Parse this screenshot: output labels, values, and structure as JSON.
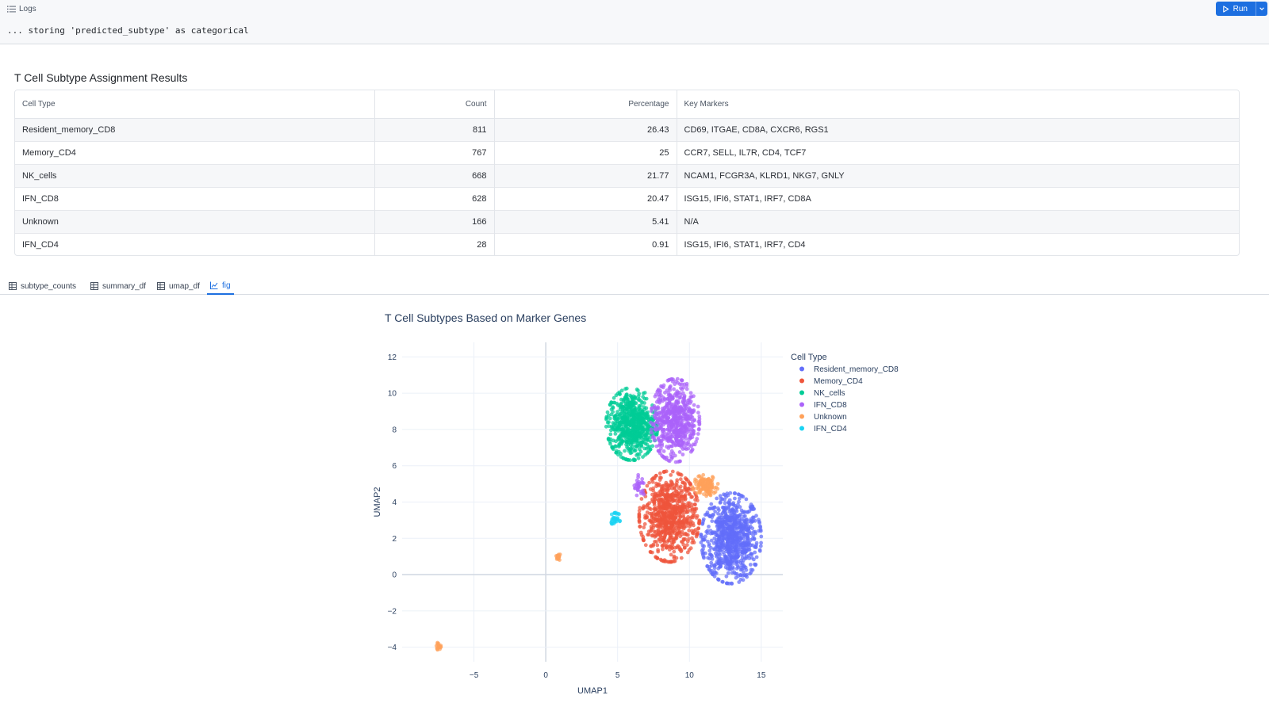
{
  "logs": {
    "label": "Logs",
    "line": "... storing 'predicted_subtype' as categorical"
  },
  "toolbar": {
    "run_label": "Run"
  },
  "results": {
    "title": "T Cell Subtype Assignment Results",
    "columns": [
      "Cell Type",
      "Count",
      "Percentage",
      "Key Markers"
    ],
    "rows": [
      [
        "Resident_memory_CD8",
        "811",
        "26.43",
        "CD69, ITGAE, CD8A, CXCR6, RGS1"
      ],
      [
        "Memory_CD4",
        "767",
        "25",
        "CCR7, SELL, IL7R, CD4, TCF7"
      ],
      [
        "NK_cells",
        "668",
        "21.77",
        "NCAM1, FCGR3A, KLRD1, NKG7, GNLY"
      ],
      [
        "IFN_CD8",
        "628",
        "20.47",
        "ISG15, IFI6, STAT1, IRF7, CD8A"
      ],
      [
        "Unknown",
        "166",
        "5.41",
        "N/A"
      ],
      [
        "IFN_CD4",
        "28",
        "0.91",
        "ISG15, IFI6, STAT1, IRF7, CD4"
      ]
    ]
  },
  "tabs": [
    {
      "label": "subtype_counts",
      "icon": "table-icon",
      "active": false
    },
    {
      "label": "summary_df",
      "icon": "table-icon",
      "active": false
    },
    {
      "label": "umap_df",
      "icon": "table-icon",
      "active": false
    },
    {
      "label": "fig",
      "icon": "chart-icon",
      "active": true
    }
  ],
  "colors": {
    "accent": "#1d6fe0",
    "Resident_memory_CD8": "#636efa",
    "Memory_CD4": "#ef553b",
    "NK_cells": "#00cc96",
    "IFN_CD8": "#ab63fa",
    "Unknown": "#ffa15a",
    "IFN_CD4": "#19d3f3"
  },
  "chart_data": {
    "type": "scatter",
    "title": "T Cell Subtypes Based on Marker Genes",
    "xlabel": "UMAP1",
    "ylabel": "UMAP2",
    "xlim": [
      -10,
      16.5
    ],
    "ylim": [
      -4.8,
      12.8
    ],
    "xticks": [
      -5,
      0,
      5,
      10,
      15
    ],
    "yticks": [
      -4,
      -2,
      0,
      2,
      4,
      6,
      8,
      10,
      12
    ],
    "grid": true,
    "legend": {
      "title": "Cell Type",
      "placement": "right"
    },
    "series": [
      {
        "name": "Resident_memory_CD8",
        "color": "#636efa",
        "clusters": [
          {
            "cx": 12.9,
            "cy": 2.0,
            "rx": 2.1,
            "ry": 2.5,
            "n": 811
          }
        ]
      },
      {
        "name": "Memory_CD4",
        "color": "#ef553b",
        "clusters": [
          {
            "cx": 8.6,
            "cy": 3.2,
            "rx": 2.1,
            "ry": 2.5,
            "n": 767
          }
        ]
      },
      {
        "name": "NK_cells",
        "color": "#00cc96",
        "clusters": [
          {
            "cx": 6.0,
            "cy": 8.3,
            "rx": 1.8,
            "ry": 2.0,
            "n": 668
          }
        ]
      },
      {
        "name": "IFN_CD8",
        "color": "#ab63fa",
        "clusters": [
          {
            "cx": 9.0,
            "cy": 8.5,
            "rx": 1.7,
            "ry": 2.3,
            "n": 600
          },
          {
            "cx": 6.5,
            "cy": 4.8,
            "rx": 0.5,
            "ry": 0.7,
            "n": 28
          }
        ]
      },
      {
        "name": "Unknown",
        "color": "#ffa15a",
        "clusters": [
          {
            "cx": 11.1,
            "cy": 4.9,
            "rx": 0.9,
            "ry": 0.6,
            "n": 130
          },
          {
            "cx": 0.9,
            "cy": 1.0,
            "rx": 0.2,
            "ry": 0.2,
            "n": 18
          },
          {
            "cx": -7.5,
            "cy": -3.95,
            "rx": 0.2,
            "ry": 0.2,
            "n": 18
          }
        ]
      },
      {
        "name": "IFN_CD4",
        "color": "#19d3f3",
        "clusters": [
          {
            "cx": 4.8,
            "cy": 3.1,
            "rx": 0.4,
            "ry": 0.35,
            "n": 28
          }
        ]
      }
    ]
  }
}
